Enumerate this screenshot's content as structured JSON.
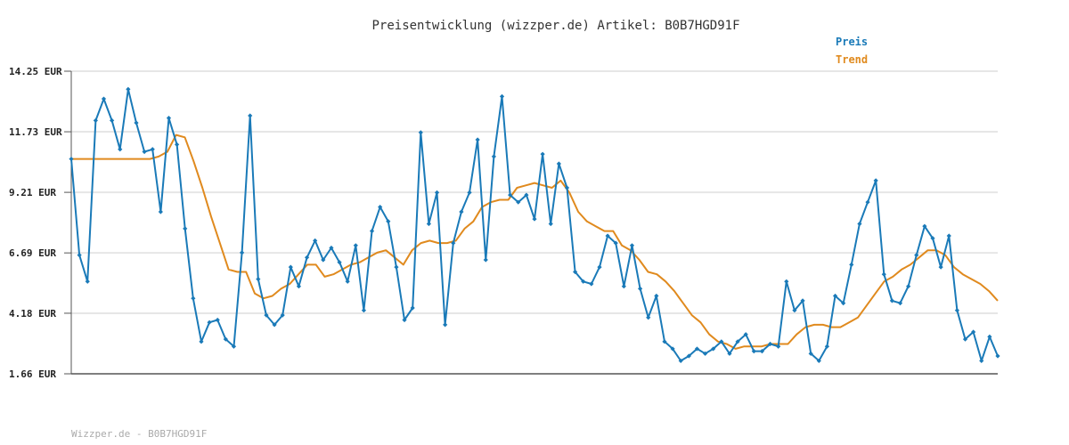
{
  "footer": "Wizzper.de - B0B7HGD91F",
  "colors": {
    "preis": "#1a7ab8",
    "trend": "#e08a1e",
    "grid": "#e6e6e6",
    "axis": "#666666"
  },
  "chart_data": {
    "type": "line",
    "title": "Preisentwicklung (wizzper.de) Artikel: B0B7HGD91F",
    "xlabel": "",
    "ylabel": "",
    "ylim": [
      1.66,
      14.25
    ],
    "yticks": [
      1.66,
      4.18,
      6.69,
      9.21,
      11.73,
      14.25
    ],
    "ytick_labels": [
      "1.66 EUR",
      "4.18 EUR",
      "6.69 EUR",
      "9.21 EUR",
      "11.73 EUR",
      "14.25 EUR"
    ],
    "grid": true,
    "legend_position": "top-right",
    "series": [
      {
        "name": "Preis",
        "color": "#1a7ab8",
        "values": [
          10.6,
          6.6,
          5.5,
          12.2,
          13.1,
          12.2,
          11.0,
          13.5,
          12.1,
          10.9,
          11.0,
          8.4,
          12.3,
          11.2,
          7.7,
          4.8,
          3.0,
          3.8,
          3.9,
          3.1,
          2.8,
          6.7,
          12.4,
          5.6,
          4.1,
          3.7,
          4.1,
          6.1,
          5.3,
          6.5,
          7.2,
          6.4,
          6.9,
          6.3,
          5.5,
          7.0,
          4.3,
          7.6,
          8.6,
          8.0,
          6.1,
          3.9,
          4.4,
          11.7,
          7.9,
          9.2,
          3.7,
          7.1,
          8.4,
          9.2,
          11.4,
          6.4,
          10.7,
          13.2,
          9.1,
          8.8,
          9.1,
          8.1,
          10.8,
          7.9,
          10.4,
          9.4,
          5.9,
          5.5,
          5.4,
          6.1,
          7.4,
          7.1,
          5.3,
          7.0,
          5.2,
          4.0,
          4.9,
          3.0,
          2.7,
          2.2,
          2.4,
          2.7,
          2.5,
          2.7,
          3.0,
          2.5,
          3.0,
          3.3,
          2.6,
          2.6,
          2.9,
          2.8,
          5.5,
          4.3,
          4.7,
          2.5,
          2.2,
          2.8,
          4.9,
          4.6,
          6.2,
          7.9,
          8.8,
          9.7,
          5.8,
          4.7,
          4.6,
          5.3,
          6.6,
          7.8,
          7.3,
          6.1,
          7.4,
          4.3,
          3.1,
          3.4,
          2.2,
          3.2,
          2.4
        ]
      },
      {
        "name": "Trend",
        "color": "#e08a1e",
        "values": [
          10.6,
          10.6,
          10.6,
          10.6,
          10.6,
          10.6,
          10.6,
          10.6,
          10.6,
          10.6,
          10.7,
          10.9,
          11.6,
          11.5,
          10.5,
          9.4,
          8.2,
          7.1,
          6.0,
          5.9,
          5.9,
          5.0,
          4.8,
          4.9,
          5.2,
          5.4,
          5.8,
          6.2,
          6.2,
          5.7,
          5.8,
          6.0,
          6.2,
          6.3,
          6.5,
          6.7,
          6.8,
          6.5,
          6.2,
          6.8,
          7.1,
          7.2,
          7.1,
          7.1,
          7.2,
          7.7,
          8.0,
          8.6,
          8.8,
          8.9,
          8.9,
          9.4,
          9.5,
          9.6,
          9.5,
          9.4,
          9.7,
          9.2,
          8.4,
          8.0,
          7.8,
          7.6,
          7.6,
          7.0,
          6.8,
          6.4,
          5.9,
          5.8,
          5.5,
          5.1,
          4.6,
          4.1,
          3.8,
          3.3,
          3.0,
          2.9,
          2.7,
          2.8,
          2.8,
          2.8,
          2.9,
          2.9,
          2.9,
          3.3,
          3.6,
          3.7,
          3.7,
          3.6,
          3.6,
          3.8,
          4.0,
          4.5,
          5.0,
          5.5,
          5.7,
          6.0,
          6.2,
          6.5,
          6.8,
          6.8,
          6.6,
          6.1,
          5.8,
          5.6,
          5.4,
          5.1,
          4.7
        ]
      }
    ]
  }
}
